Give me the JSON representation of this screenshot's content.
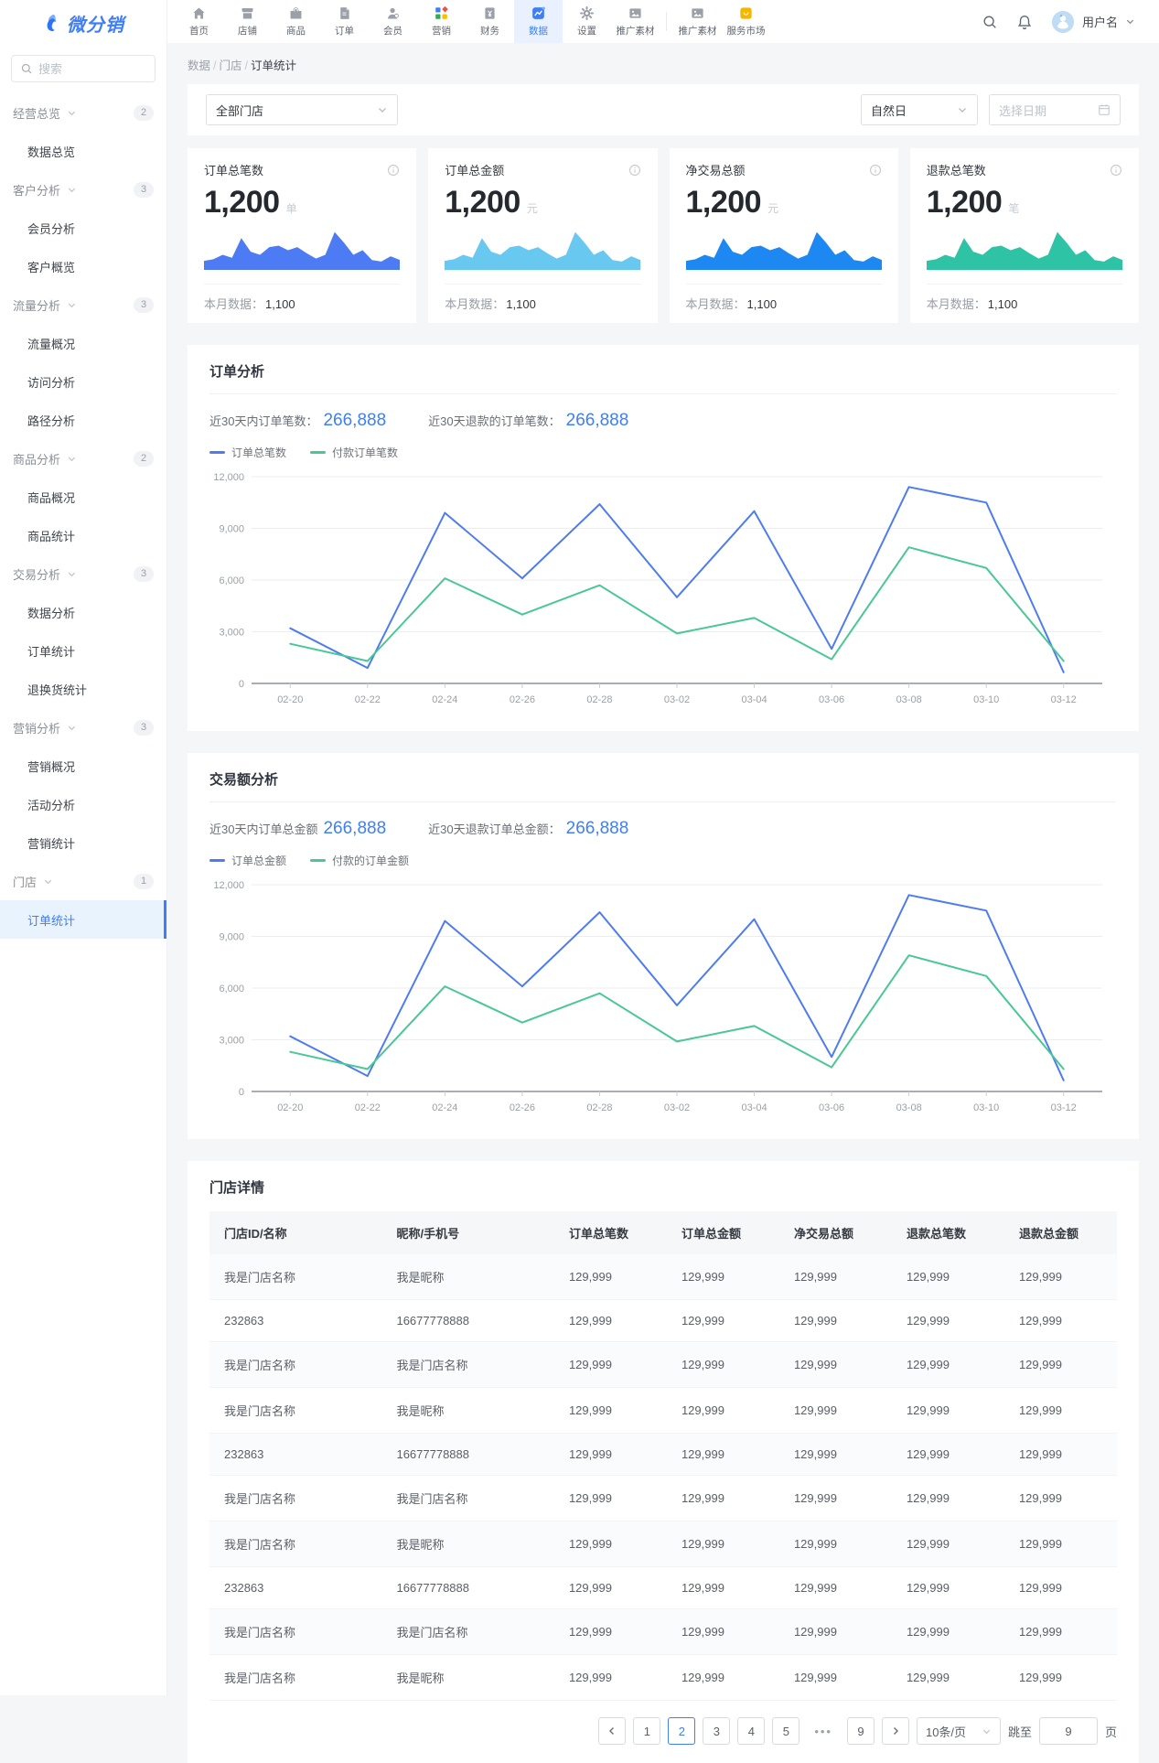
{
  "topbar": {
    "nav": [
      {
        "label": "首页",
        "icon": "home-icon"
      },
      {
        "label": "店铺",
        "icon": "shop-icon"
      },
      {
        "label": "商品",
        "icon": "goods-icon"
      },
      {
        "label": "订单",
        "icon": "order-icon"
      },
      {
        "label": "会员",
        "icon": "member-icon"
      },
      {
        "label": "营销",
        "icon": "marketing-icon"
      },
      {
        "label": "财务",
        "icon": "finance-icon"
      },
      {
        "label": "数据",
        "icon": "data-icon",
        "active": true
      },
      {
        "label": "设置",
        "icon": "settings-icon"
      },
      {
        "label": "推广素材",
        "icon": "material-icon"
      },
      {
        "label": "推广素材",
        "icon": "material-icon",
        "divider_before": true
      },
      {
        "label": "服务市场",
        "icon": "market-icon"
      }
    ],
    "right_icons": [
      "search-icon",
      "bell-icon"
    ],
    "username": "用户名"
  },
  "sidebar": {
    "logo_text": "微分销",
    "search_placeholder": "搜索",
    "groups": [
      {
        "label": "经营总览",
        "badge": "2",
        "items": [
          "数据总览"
        ]
      },
      {
        "label": "客户分析",
        "badge": "3",
        "items": [
          "会员分析",
          "客户概览"
        ]
      },
      {
        "label": "流量分析",
        "badge": "3",
        "items": [
          "流量概况",
          "访问分析",
          "路径分析"
        ]
      },
      {
        "label": "商品分析",
        "badge": "2",
        "items": [
          "商品概况",
          "商品统计"
        ]
      },
      {
        "label": "交易分析",
        "badge": "3",
        "items": [
          "数据分析",
          "订单统计",
          "退换货统计"
        ]
      },
      {
        "label": "营销分析",
        "badge": "3",
        "items": [
          "营销概况",
          "活动分析",
          "营销统计"
        ]
      },
      {
        "label": "门店",
        "badge": "1",
        "items": [
          "订单统计"
        ],
        "active_item": "订单统计"
      }
    ]
  },
  "breadcrumb": {
    "items": [
      "数据",
      "门店",
      "订单统计"
    ],
    "separator": "/"
  },
  "filters": {
    "store": "全部门店",
    "granularity": "自然日",
    "date_placeholder": "选择日期"
  },
  "stat_cards": [
    {
      "title": "订单总笔数",
      "value": "1,200",
      "unit": "单",
      "month_label": "本月数据：",
      "month_value": "1,100",
      "color": "#4d7bf3"
    },
    {
      "title": "订单总金额",
      "value": "1,200",
      "unit": "元",
      "month_label": "本月数据：",
      "month_value": "1,100",
      "color": "#68c8f0"
    },
    {
      "title": "净交易总额",
      "value": "1,200",
      "unit": "元",
      "month_label": "本月数据：",
      "month_value": "1,100",
      "color": "#1e88f2"
    },
    {
      "title": "退款总笔数",
      "value": "1,200",
      "unit": "笔",
      "month_label": "本月数据：",
      "month_value": "1,100",
      "color": "#2fc3a6"
    }
  ],
  "sparkline_values": [
    12,
    14,
    20,
    16,
    42,
    24,
    20,
    30,
    32,
    26,
    30,
    22,
    15,
    20,
    50,
    36,
    20,
    26,
    13,
    11,
    18,
    13
  ],
  "chart_data": [
    {
      "type": "line",
      "title": "订单分析",
      "stats": [
        {
          "label": "近30天内订单笔数：",
          "value": "266,888"
        },
        {
          "label": "近30天退款的订单笔数：",
          "value": "266,888"
        }
      ],
      "x": [
        "02-20",
        "02-22",
        "02-24",
        "02-26",
        "02-28",
        "03-02",
        "03-04",
        "03-06",
        "03-08",
        "03-10",
        "03-12"
      ],
      "series": [
        {
          "name": "订单总笔数",
          "color": "#4e7cf0",
          "values": [
            3200,
            900,
            9900,
            6100,
            10400,
            5000,
            10000,
            2000,
            11400,
            10500,
            650
          ]
        },
        {
          "name": "付款订单笔数",
          "color": "#49c795",
          "values": [
            2300,
            1300,
            6100,
            4000,
            5700,
            2900,
            3800,
            1400,
            7900,
            6700,
            1300
          ]
        }
      ],
      "ylim": [
        0,
        12000
      ],
      "yticks": [
        0,
        3000,
        6000,
        9000,
        12000
      ],
      "grid": true,
      "legend_position": "top"
    },
    {
      "type": "line",
      "title": "交易额分析",
      "stats": [
        {
          "label": "近30天内订单总金额",
          "value": "266,888"
        },
        {
          "label": "近30天退款订单总金额：",
          "value": "266,888"
        }
      ],
      "x": [
        "02-20",
        "02-22",
        "02-24",
        "02-26",
        "02-28",
        "03-02",
        "03-04",
        "03-06",
        "03-08",
        "03-10",
        "03-12"
      ],
      "series": [
        {
          "name": "订单总金额",
          "color": "#4e7cf0",
          "values": [
            3200,
            900,
            9900,
            6100,
            10400,
            5000,
            10000,
            2000,
            11400,
            10500,
            650
          ]
        },
        {
          "name": "付款的订单金额",
          "color": "#49c795",
          "values": [
            2300,
            1300,
            6100,
            4000,
            5700,
            2900,
            3800,
            1400,
            7900,
            6700,
            1300
          ]
        }
      ],
      "ylim": [
        0,
        12000
      ],
      "yticks": [
        0,
        3000,
        6000,
        9000,
        12000
      ],
      "grid": true,
      "legend_position": "top"
    }
  ],
  "store_table": {
    "title": "门店详情",
    "columns": [
      "门店ID/名称",
      "昵称/手机号",
      "订单总笔数",
      "订单总金额",
      "净交易总额",
      "退款总笔数",
      "退款总金额"
    ],
    "rows": [
      [
        "我是门店名称",
        "我是昵称",
        "129,999",
        "129,999",
        "129,999",
        "129,999",
        "129,999"
      ],
      [
        "232863",
        "16677778888",
        "129,999",
        "129,999",
        "129,999",
        "129,999",
        "129,999"
      ],
      [
        "我是门店名称",
        "我是门店名称",
        "129,999",
        "129,999",
        "129,999",
        "129,999",
        "129,999"
      ],
      [
        "我是门店名称",
        "我是昵称",
        "129,999",
        "129,999",
        "129,999",
        "129,999",
        "129,999"
      ],
      [
        "232863",
        "16677778888",
        "129,999",
        "129,999",
        "129,999",
        "129,999",
        "129,999"
      ],
      [
        "我是门店名称",
        "我是门店名称",
        "129,999",
        "129,999",
        "129,999",
        "129,999",
        "129,999"
      ],
      [
        "我是门店名称",
        "我是昵称",
        "129,999",
        "129,999",
        "129,999",
        "129,999",
        "129,999"
      ],
      [
        "232863",
        "16677778888",
        "129,999",
        "129,999",
        "129,999",
        "129,999",
        "129,999"
      ],
      [
        "我是门店名称",
        "我是门店名称",
        "129,999",
        "129,999",
        "129,999",
        "129,999",
        "129,999"
      ],
      [
        "我是门店名称",
        "我是昵称",
        "129,999",
        "129,999",
        "129,999",
        "129,999",
        "129,999"
      ]
    ]
  },
  "pagination": {
    "pages": [
      "1",
      "2",
      "3",
      "4",
      "5",
      "•••",
      "9"
    ],
    "active": "2",
    "page_size": "10条/页",
    "jump_label": "跳至",
    "jump_value": "9",
    "jump_suffix": "页"
  }
}
